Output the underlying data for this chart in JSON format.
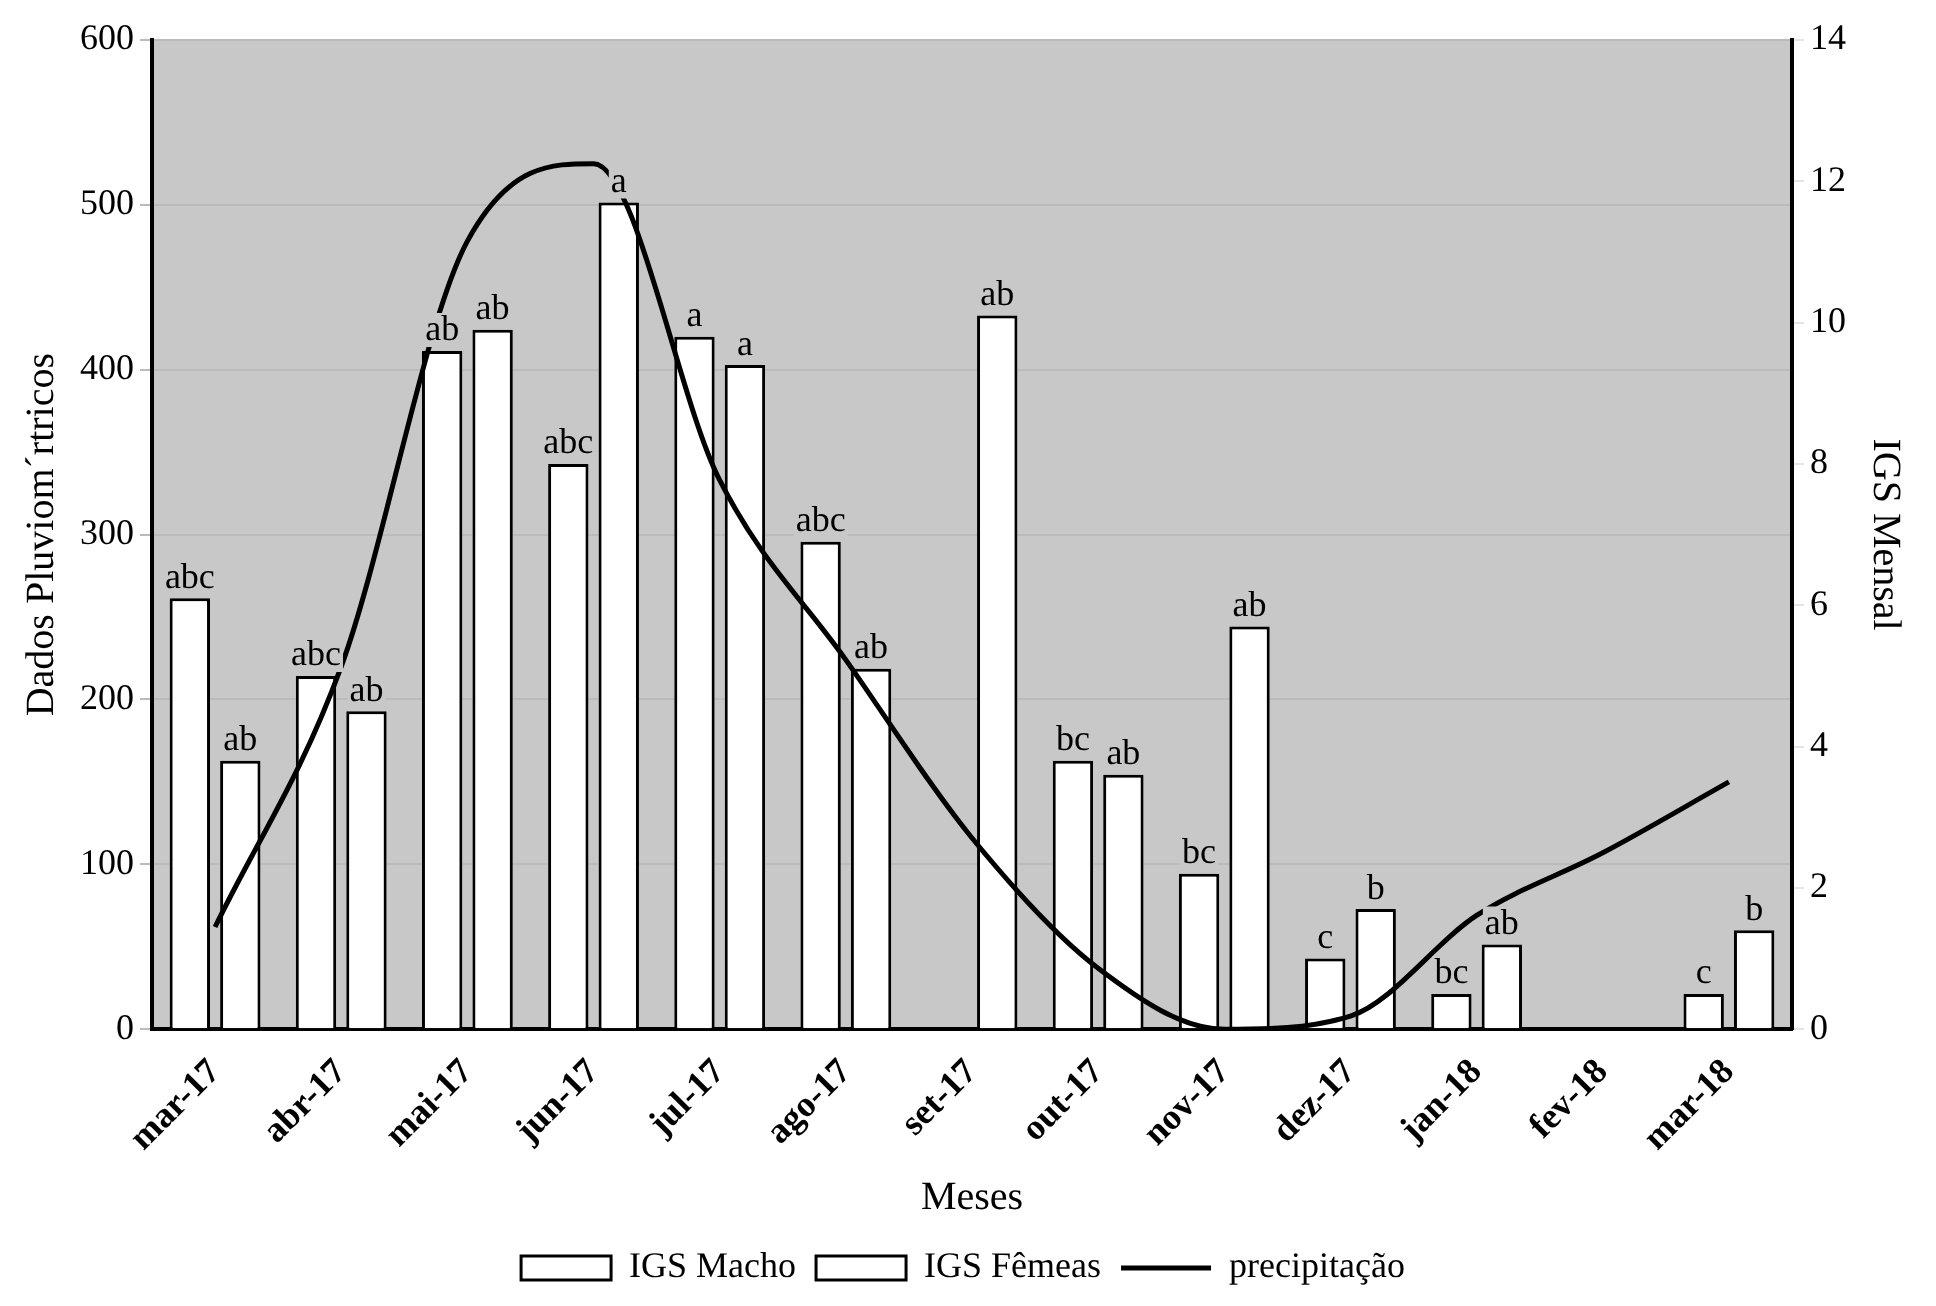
{
  "chart_data": {
    "type": "bar",
    "xlabel": "Meses",
    "ylabel": "Dados Pluviom´rtricos",
    "y2label": "IGS Mensal",
    "categories": [
      "mar-17",
      "abr-17",
      "mai-17",
      "jun-17",
      "jul-17",
      "ago-17",
      "set-17",
      "out-17",
      "nov-17",
      "dez-17",
      "jan-18",
      "fev-18",
      "mar-18"
    ],
    "series": [
      {
        "name": "IGS Macho",
        "color": "#ffffff",
        "axis": "y2",
        "values": [
          6.1,
          5.0,
          9.6,
          8.0,
          9.8,
          6.9,
          null,
          3.8,
          2.2,
          1.0,
          0.5,
          null,
          0.5
        ],
        "value_labels": [
          "abc",
          "abc",
          "ab",
          "abc",
          "a",
          "abc",
          null,
          "bc",
          "bc",
          "c",
          "bc",
          null,
          "c"
        ]
      },
      {
        "name": "IGS Fêmeas",
        "color": "#ffffff",
        "axis": "y2",
        "values": [
          3.8,
          4.5,
          9.9,
          11.7,
          9.4,
          5.1,
          10.1,
          3.6,
          5.7,
          1.7,
          1.2,
          null,
          1.4
        ],
        "value_labels": [
          "ab",
          "ab",
          "ab",
          "a",
          "a",
          "ab",
          "ab",
          "ab",
          "ab",
          "b",
          "ab",
          null,
          "b"
        ]
      },
      {
        "name": "precipitação",
        "type": "line",
        "color": "#000000",
        "values": [
          62,
          220,
          478,
          525,
          333,
          224,
          116,
          37,
          0,
          8,
          69,
          107,
          150
        ]
      }
    ],
    "ylim": [
      0,
      600
    ],
    "yticks": [
      0,
      100,
      200,
      300,
      400,
      500,
      600
    ],
    "y2lim": [
      0,
      14
    ],
    "y2ticks": [
      0,
      2,
      4,
      6,
      8,
      10,
      12,
      14
    ],
    "grid": "y",
    "legend": "bottom",
    "marker": "none",
    "line_style": "solid"
  }
}
